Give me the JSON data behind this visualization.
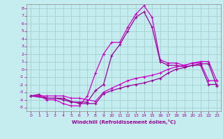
{
  "xlabel": "Windchill (Refroidissement éolien,°C)",
  "bg_color": "#c5ecee",
  "grid_color": "#a8d4d8",
  "xlim": [
    -0.5,
    23.5
  ],
  "ylim": [
    -5.5,
    8.5
  ],
  "yticks": [
    -5,
    -4,
    -3,
    -2,
    -1,
    0,
    1,
    2,
    3,
    4,
    5,
    6,
    7,
    8
  ],
  "xticks": [
    0,
    1,
    2,
    3,
    4,
    5,
    6,
    7,
    8,
    9,
    10,
    11,
    12,
    13,
    14,
    15,
    16,
    17,
    18,
    19,
    20,
    21,
    22,
    23
  ],
  "line1_x": [
    0,
    1,
    2,
    3,
    4,
    5,
    6,
    7,
    8,
    9,
    10,
    11,
    12,
    13,
    14,
    15,
    16,
    17,
    18,
    19,
    20,
    21,
    22,
    23
  ],
  "line1_y": [
    -3.5,
    -3.5,
    -4.0,
    -4.0,
    -4.5,
    -4.8,
    -4.8,
    -3.5,
    -0.5,
    2.0,
    3.5,
    3.5,
    5.5,
    7.2,
    8.3,
    6.8,
    1.2,
    0.8,
    0.8,
    0.5,
    0.8,
    0.8,
    -1.5,
    -1.5
  ],
  "line2_x": [
    0,
    1,
    2,
    3,
    4,
    5,
    6,
    7,
    8,
    9,
    10,
    11,
    12,
    13,
    14,
    15,
    16,
    17,
    18,
    19,
    20,
    21,
    22,
    23
  ],
  "line2_y": [
    -3.5,
    -3.3,
    -3.8,
    -3.8,
    -4.0,
    -4.3,
    -4.3,
    -4.3,
    -2.8,
    -2.0,
    1.8,
    3.2,
    5.0,
    6.8,
    7.5,
    5.5,
    1.0,
    0.5,
    0.5,
    0.3,
    0.5,
    0.5,
    -2.0,
    -2.0
  ],
  "line3_x": [
    0,
    2,
    3,
    4,
    5,
    6,
    7,
    8,
    9,
    10,
    11,
    12,
    13,
    14,
    15,
    16,
    17,
    18,
    19,
    20,
    21,
    22,
    23
  ],
  "line3_y": [
    -3.5,
    -3.5,
    -3.5,
    -3.5,
    -3.8,
    -3.8,
    -4.0,
    -4.2,
    -3.0,
    -2.5,
    -2.0,
    -1.5,
    -1.2,
    -1.0,
    -0.8,
    -0.5,
    0.0,
    0.3,
    0.5,
    0.8,
    1.0,
    1.0,
    -1.5
  ],
  "line4_x": [
    0,
    2,
    3,
    4,
    5,
    6,
    7,
    8,
    9,
    10,
    11,
    12,
    13,
    14,
    15,
    16,
    17,
    18,
    19,
    20,
    21,
    22,
    23
  ],
  "line4_y": [
    -3.5,
    -3.8,
    -3.8,
    -3.8,
    -4.2,
    -4.5,
    -4.5,
    -4.5,
    -3.2,
    -2.8,
    -2.5,
    -2.2,
    -2.0,
    -1.8,
    -1.5,
    -1.2,
    -0.5,
    0.0,
    0.2,
    0.5,
    0.7,
    0.7,
    -2.2
  ],
  "line_color1": "#cc00cc",
  "line_color2": "#990099",
  "line_color3": "#cc00cc",
  "line_color4": "#990099",
  "tick_color": "#990099",
  "tick_fontsize": 4.5,
  "xlabel_fontsize": 5.0,
  "xlabel_color": "#990099"
}
